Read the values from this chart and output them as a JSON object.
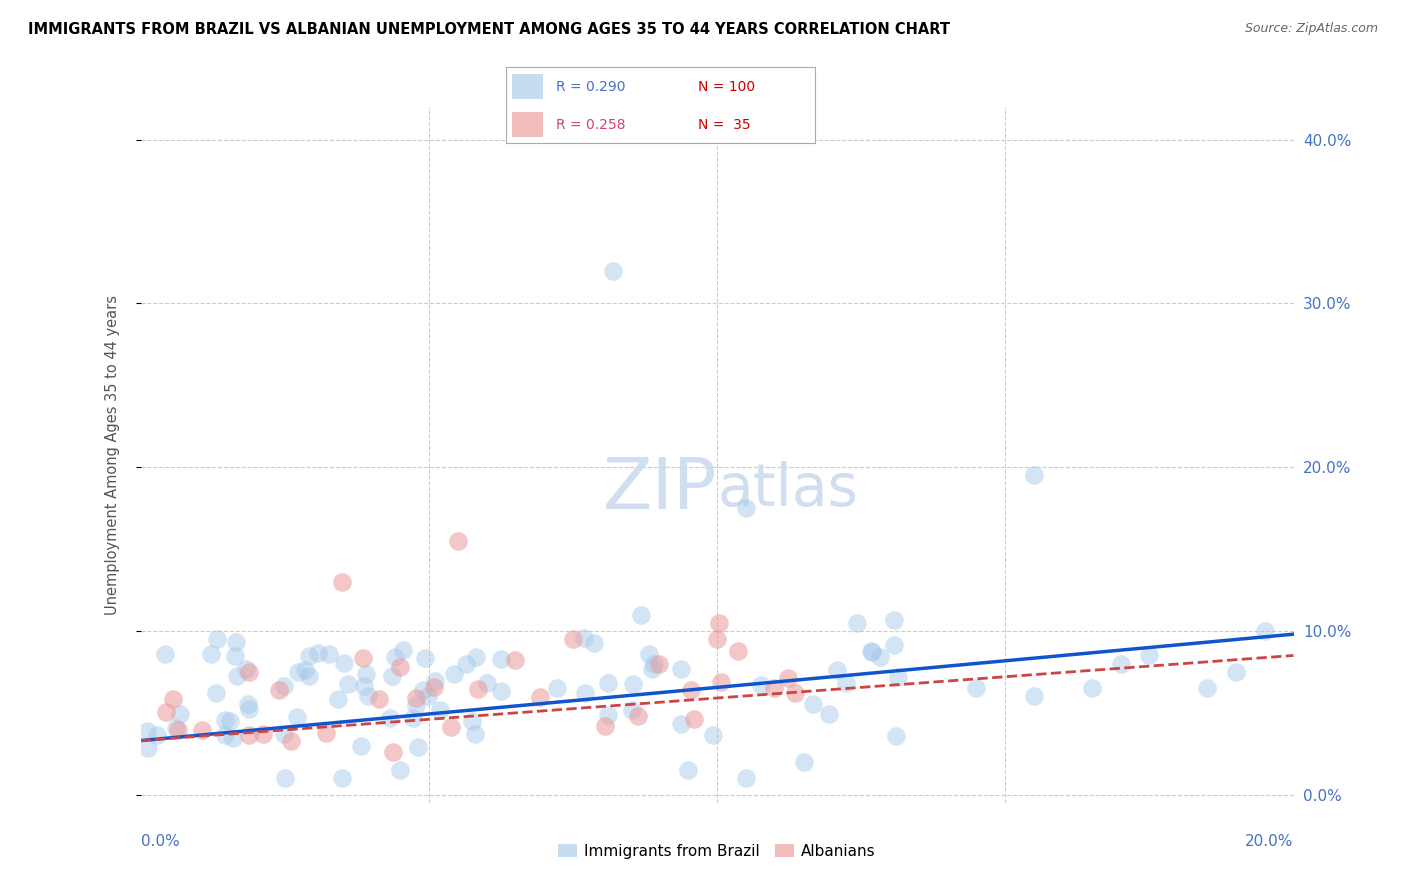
{
  "title": "IMMIGRANTS FROM BRAZIL VS ALBANIAN UNEMPLOYMENT AMONG AGES 35 TO 44 YEARS CORRELATION CHART",
  "source": "Source: ZipAtlas.com",
  "ylabel": "Unemployment Among Ages 35 to 44 years",
  "legend_brazil_label": "Immigrants from Brazil",
  "legend_albanian_label": "Albanians",
  "brazil_R": 0.29,
  "brazil_N": 100,
  "albanian_R": 0.258,
  "albanian_N": 35,
  "brazil_color": "#9fc5e8",
  "albanian_color": "#ea9999",
  "brazil_line_color": "#1155cc",
  "albanian_line_color": "#cc4444",
  "watermark_color": "#c9d9ed",
  "background_color": "#ffffff",
  "grid_color": "#cccccc",
  "xlim": [
    0.0,
    0.2
  ],
  "ylim": [
    -0.005,
    0.42
  ],
  "ytick_vals": [
    0.0,
    0.1,
    0.2,
    0.3,
    0.4
  ],
  "xtick_vals": [
    0.0,
    0.05,
    0.1,
    0.15,
    0.2
  ],
  "title_color": "#000000",
  "source_color": "#666666",
  "tick_color": "#4472c4",
  "ylabel_color": "#555555",
  "brazil_line_y0": 0.033,
  "brazil_line_y1": 0.098,
  "albanian_line_y0": 0.033,
  "albanian_line_y1": 0.085
}
